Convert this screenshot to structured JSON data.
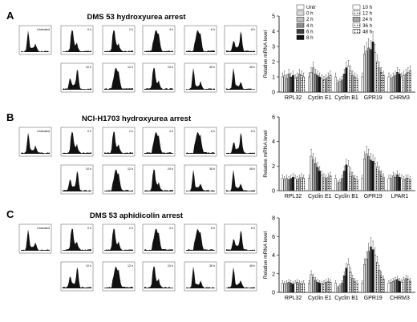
{
  "panels": [
    {
      "letter": "A",
      "title": "DMS 53 hydroxyurea arrest",
      "flow_labels": [
        "Untreated",
        "0 h",
        "2 h",
        "4 h",
        "6 h",
        "8 h",
        "10 h",
        "12 h",
        "24 h",
        "36 h",
        "48 h"
      ]
    },
    {
      "letter": "B",
      "title": "NCI-H1703 hydroxyurea arrest",
      "flow_labels": [
        "Untreated",
        "0 h",
        "2 h",
        "4 h",
        "6 h",
        "8 h",
        "10 h",
        "12 h",
        "24 h",
        "36 h",
        "48 h"
      ]
    },
    {
      "letter": "C",
      "title": "DMS 53 aphidicolin arrest",
      "flow_labels": [
        "Untreated",
        "0 h",
        "2 h",
        "4 h",
        "6 h",
        "8 h",
        "10 h",
        "12 h",
        "24 h",
        "36 h",
        "48 h"
      ]
    }
  ],
  "legend": {
    "entries": [
      "Untr",
      "0 h",
      "2 h",
      "4 h",
      "6 h",
      "8 h",
      "10 h",
      "12 h",
      "24 h",
      "36 h",
      "48 h"
    ],
    "colors": [
      "#ffffff",
      "#d9d9d9",
      "#bfbfbf",
      "#8c8c8c",
      "#404040",
      "#111111",
      "#ffffff",
      "#ececec",
      "#a6a6a6",
      "#cfcfcf",
      "#e0e0e0"
    ],
    "patterns": [
      "none",
      "none",
      "none",
      "none",
      "none",
      "none",
      "none",
      "dots",
      "none",
      "dots",
      "dots"
    ]
  },
  "chart_data": [
    {
      "type": "bar",
      "ylabel": "Relative mRNA level",
      "ylim": [
        0,
        5
      ],
      "yticks": [
        0,
        1,
        2,
        3,
        4,
        5
      ],
      "categories": [
        "RPL32",
        "Cyclin E1",
        "Cyclin B1",
        "GPR19",
        "CHRM3"
      ],
      "timepoints": [
        "Untr",
        "0 h",
        "2 h",
        "4 h",
        "6 h",
        "8 h",
        "10 h",
        "12 h",
        "24 h",
        "36 h",
        "48 h"
      ],
      "values": [
        [
          1.0,
          1.1,
          0.9,
          1.2,
          1.0,
          1.1,
          0.9,
          1.0,
          1.2,
          1.1,
          1.0
        ],
        [
          1.0,
          1.3,
          1.6,
          1.2,
          1.1,
          1.0,
          0.9,
          0.8,
          0.9,
          1.0,
          1.1
        ],
        [
          1.0,
          0.6,
          0.7,
          0.8,
          1.2,
          1.6,
          1.7,
          1.4,
          1.1,
          1.0,
          0.9
        ],
        [
          1.0,
          2.5,
          2.7,
          2.9,
          2.8,
          3.3,
          2.6,
          2.0,
          1.6,
          1.3,
          1.1
        ],
        [
          1.0,
          0.9,
          1.0,
          1.1,
          1.3,
          1.2,
          1.0,
          1.1,
          1.2,
          1.3,
          1.4
        ]
      ]
    },
    {
      "type": "bar",
      "ylabel": "Relative mRNA level",
      "ylim": [
        0,
        6
      ],
      "yticks": [
        0,
        2,
        4,
        6
      ],
      "categories": [
        "RPL32",
        "Cyclin E1",
        "Cyclin B1",
        "GPR19",
        "LPAR1"
      ],
      "timepoints": [
        "Untr",
        "0 h",
        "2 h",
        "4 h",
        "6 h",
        "8 h",
        "10 h",
        "12 h",
        "24 h",
        "36 h",
        "48 h"
      ],
      "values": [
        [
          1.0,
          0.9,
          1.0,
          0.9,
          1.0,
          1.1,
          1.0,
          0.9,
          1.0,
          1.1,
          1.0
        ],
        [
          1.0,
          2.8,
          2.5,
          2.2,
          1.9,
          1.6,
          1.3,
          1.1,
          1.0,
          1.1,
          1.2
        ],
        [
          1.0,
          0.6,
          0.7,
          1.0,
          1.6,
          2.1,
          2.0,
          1.5,
          1.2,
          1.0,
          0.9
        ],
        [
          1.0,
          2.6,
          3.0,
          2.8,
          2.5,
          2.4,
          2.2,
          1.9,
          1.6,
          1.3,
          1.1
        ],
        [
          1.0,
          1.0,
          1.2,
          1.1,
          1.3,
          1.1,
          1.0,
          0.9,
          1.0,
          1.0,
          0.9
        ]
      ]
    },
    {
      "type": "bar",
      "ylabel": "Relative mRNA level",
      "ylim": [
        0,
        8
      ],
      "yticks": [
        0,
        2,
        4,
        6,
        8
      ],
      "categories": [
        "RPL32",
        "Cyclin E1",
        "Cyclin B1",
        "GPR19",
        "CHRM3"
      ],
      "timepoints": [
        "Untr",
        "0 h",
        "2 h",
        "4 h",
        "6 h",
        "8 h",
        "10 h",
        "12 h",
        "24 h",
        "36 h",
        "48 h"
      ],
      "values": [
        [
          1.0,
          0.9,
          1.0,
          1.1,
          1.0,
          0.9,
          1.0,
          1.1,
          1.0,
          0.9,
          1.0
        ],
        [
          1.0,
          1.9,
          1.6,
          1.3,
          1.1,
          1.0,
          0.9,
          1.0,
          1.1,
          1.2,
          1.1
        ],
        [
          1.0,
          0.5,
          0.7,
          1.0,
          1.8,
          2.6,
          3.0,
          2.2,
          1.5,
          1.2,
          1.0
        ],
        [
          1.0,
          3.0,
          3.6,
          4.4,
          4.9,
          4.6,
          4.0,
          3.2,
          2.4,
          1.8,
          1.4
        ],
        [
          1.0,
          1.1,
          1.2,
          1.3,
          1.4,
          1.2,
          1.1,
          1.3,
          1.5,
          1.4,
          1.2
        ]
      ]
    }
  ]
}
